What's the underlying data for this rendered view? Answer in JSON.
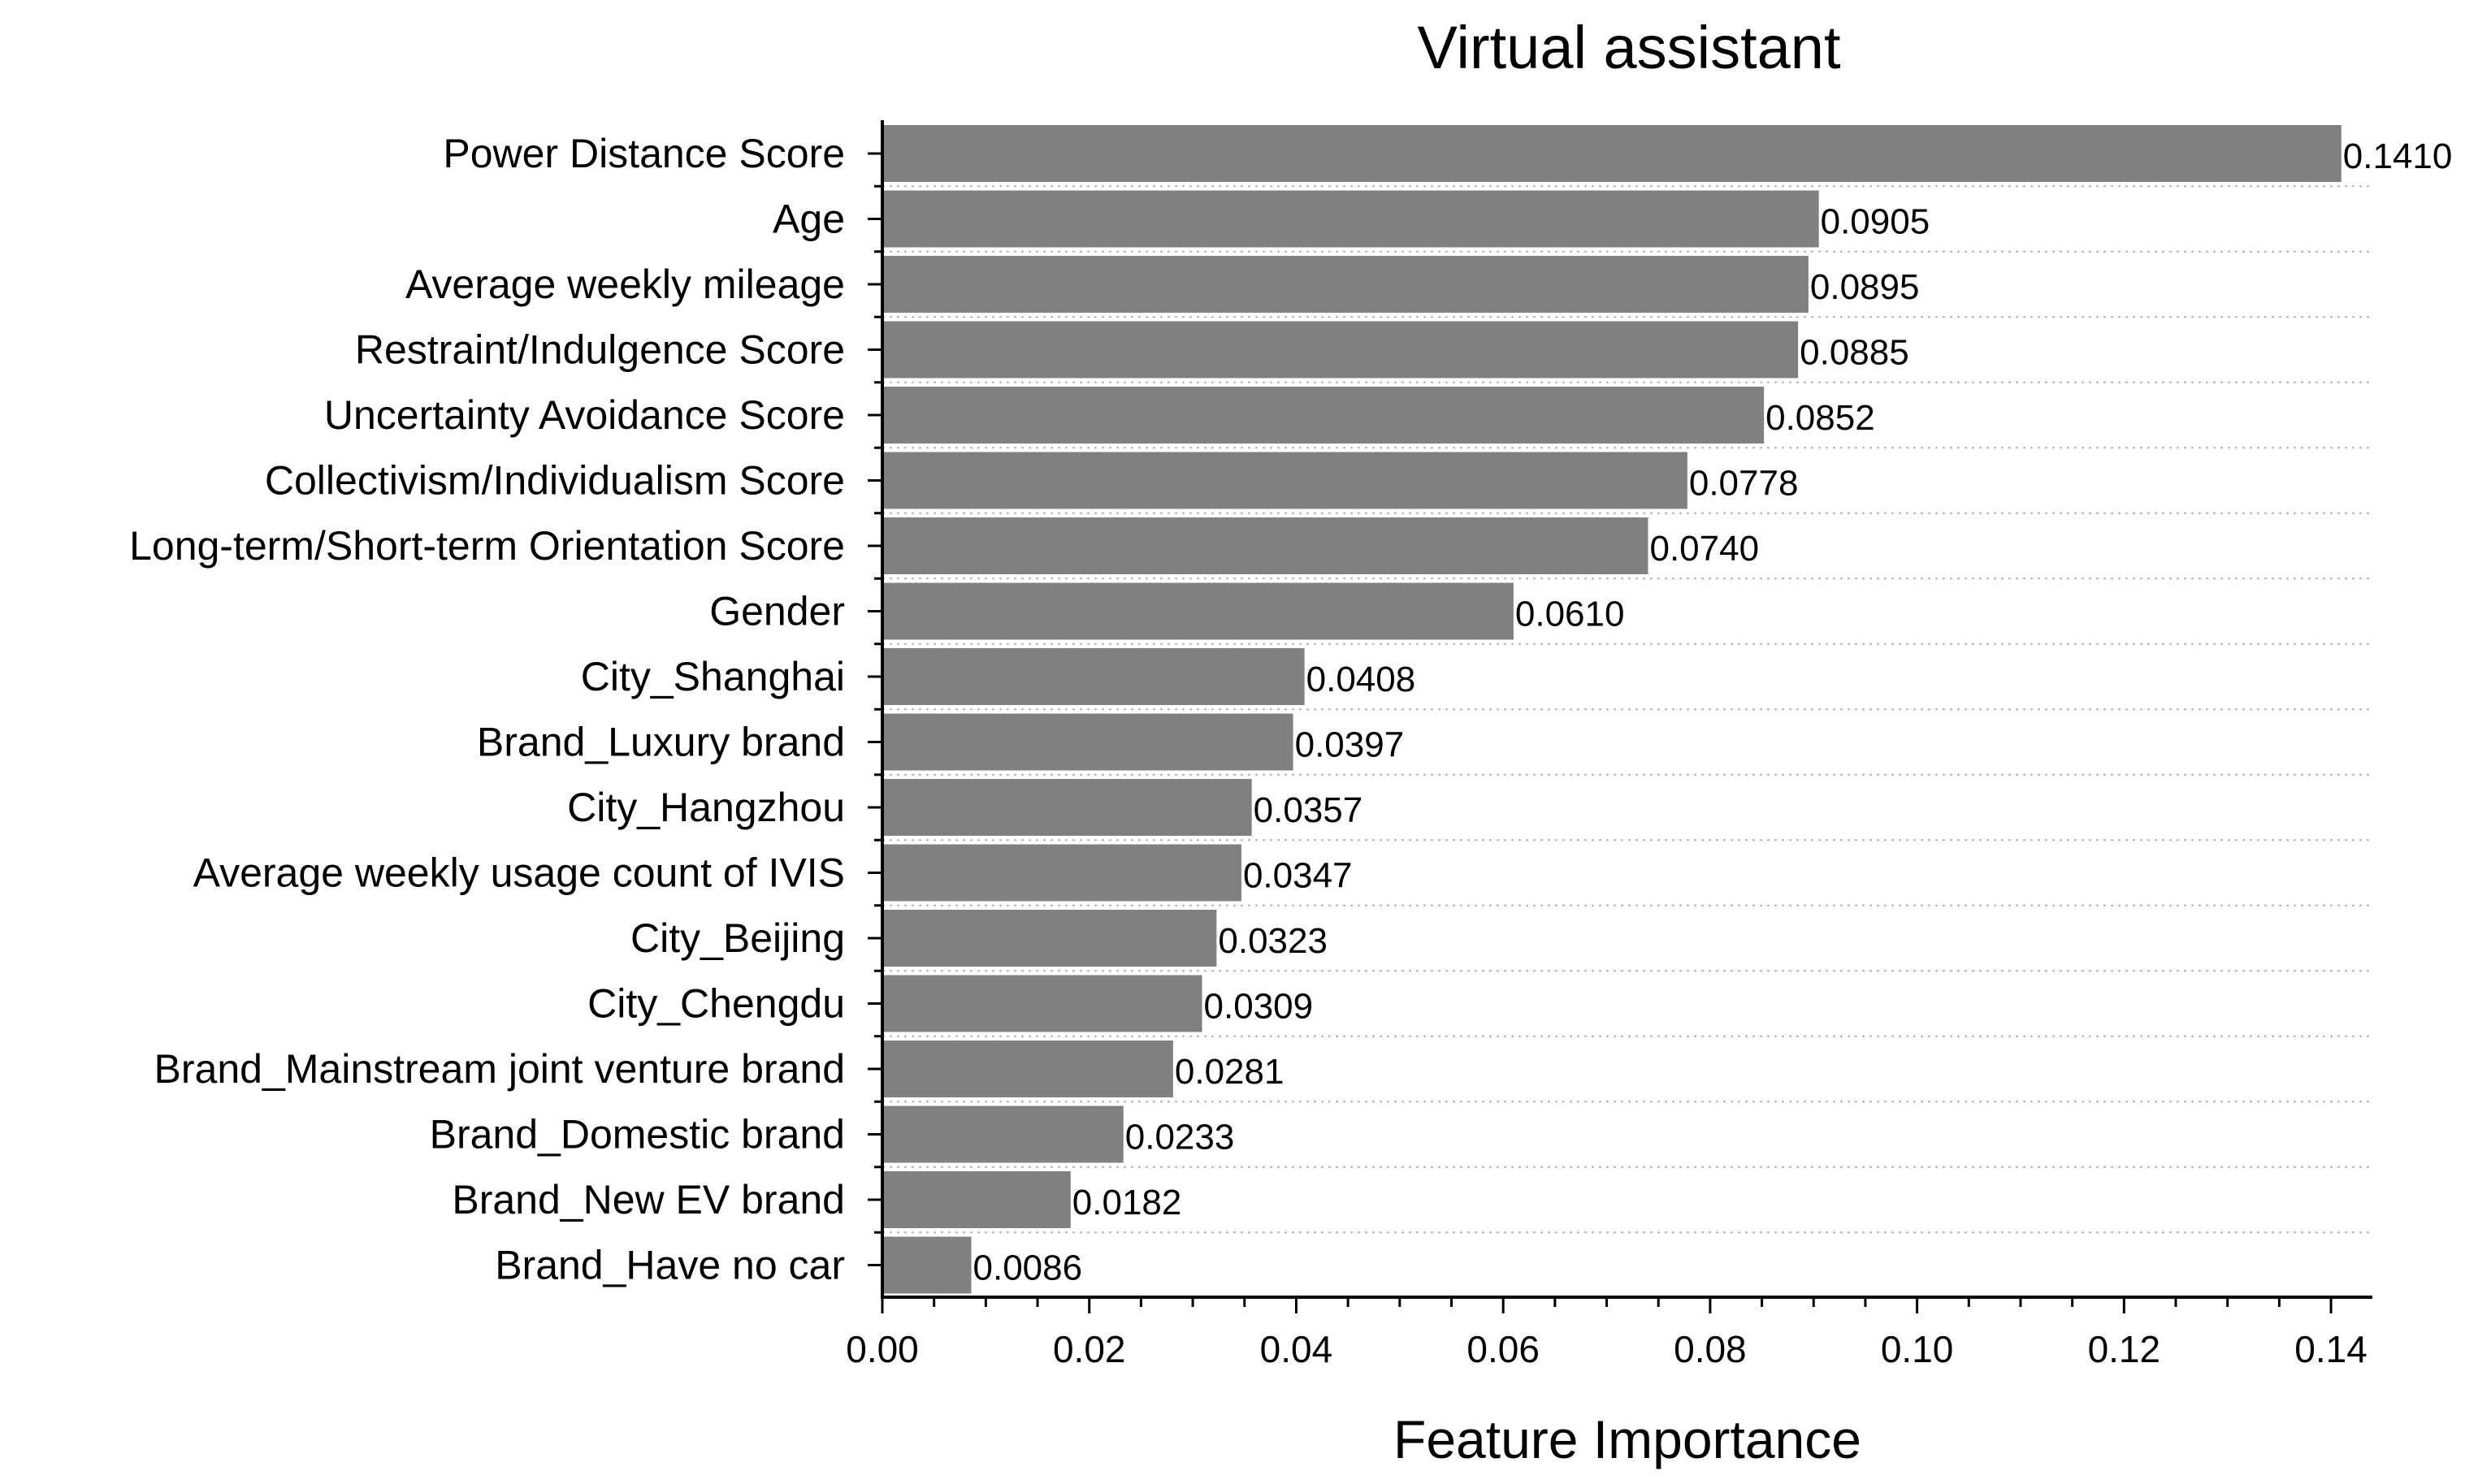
{
  "chart_data": {
    "type": "bar",
    "orientation": "horizontal",
    "title": "Virtual assistant",
    "xlabel": "Feature Importance",
    "ylabel": "",
    "xlim": [
      0,
      0.144
    ],
    "x_ticks": [
      "0.00",
      "0.02",
      "0.04",
      "0.06",
      "0.08",
      "0.10",
      "0.12",
      "0.14"
    ],
    "x_tick_values": [
      0,
      0.02,
      0.04,
      0.06,
      0.08,
      0.1,
      0.12,
      0.14
    ],
    "grid": "dotted horizontal lines between bars",
    "legend": "none",
    "bar_color": "#808080",
    "categories": [
      "Power Distance Score",
      "Age",
      "Average weekly mileage",
      "Restraint/Indulgence Score",
      "Uncertainty Avoidance Score",
      "Collectivism/Individualism Score",
      "Long-term/Short-term Orientation Score",
      "Gender",
      "City_Shanghai",
      "Brand_Luxury brand",
      "City_Hangzhou",
      "Average weekly usage count of IVIS",
      "City_Beijing",
      "City_Chengdu",
      "Brand_Mainstream joint venture brand",
      "Brand_Domestic brand",
      "Brand_New EV brand",
      "Brand_Have no car"
    ],
    "values": [
      0.141,
      0.0905,
      0.0895,
      0.0885,
      0.0852,
      0.0778,
      0.074,
      0.061,
      0.0408,
      0.0397,
      0.0357,
      0.0347,
      0.0323,
      0.0309,
      0.0281,
      0.0233,
      0.0182,
      0.0086
    ],
    "value_labels": [
      "0.1410",
      "0.0905",
      "0.0895",
      "0.0885",
      "0.0852",
      "0.0778",
      "0.0740",
      "0.0610",
      "0.0408",
      "0.0397",
      "0.0357",
      "0.0347",
      "0.0323",
      "0.0309",
      "0.0281",
      "0.0233",
      "0.0182",
      "0.0086"
    ]
  }
}
